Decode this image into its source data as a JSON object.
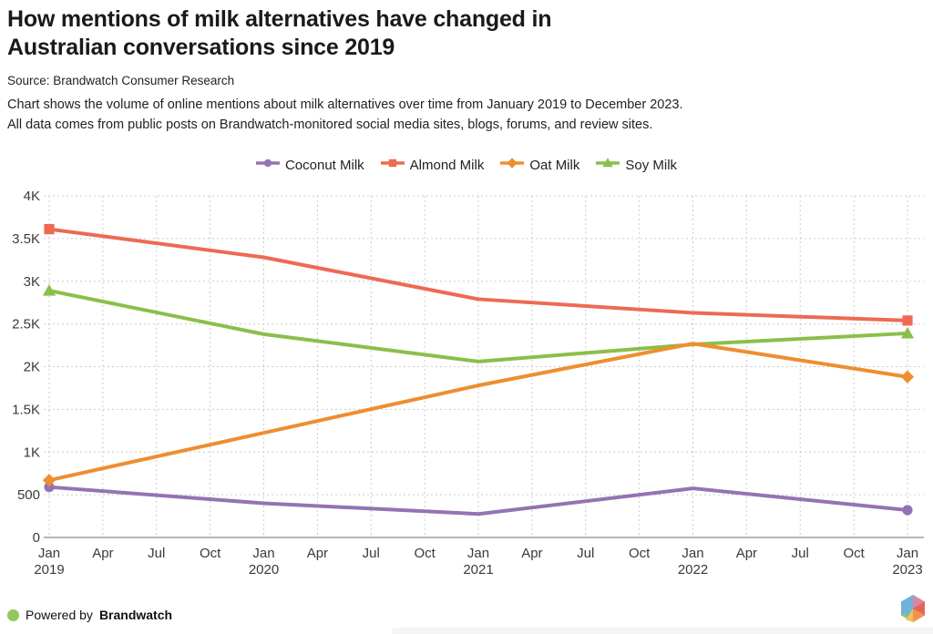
{
  "header": {
    "title": "How mentions of milk alternatives have changed in Australian conversations since 2019",
    "source": "Source: Brandwatch Consumer Research",
    "description_line1": "Chart shows the volume of online mentions about milk alternatives over time from January 2019 to December 2023.",
    "description_line2": "All data comes from public posts on Brandwatch-monitored social media sites, blogs, forums, and review sites."
  },
  "footer": {
    "powered_by": "Powered by",
    "brand": "Brandwatch",
    "dot_color": "#94c85b"
  },
  "chart_data": {
    "type": "line",
    "title": "How mentions of milk alternatives have changed in Australian conversations since 2019",
    "xlabel": "",
    "ylabel": "",
    "ylim": [
      0,
      4000
    ],
    "grid": "dotted horizontal and vertical",
    "legend_position": "top-center",
    "y_ticks": [
      {
        "value": 0,
        "label": "0"
      },
      {
        "value": 500,
        "label": "500"
      },
      {
        "value": 1000,
        "label": "1K"
      },
      {
        "value": 1500,
        "label": "1.5K"
      },
      {
        "value": 2000,
        "label": "2K"
      },
      {
        "value": 2500,
        "label": "2.5K"
      },
      {
        "value": 3000,
        "label": "3K"
      },
      {
        "value": 3500,
        "label": "3.5K"
      },
      {
        "value": 4000,
        "label": "4K"
      }
    ],
    "x_ticks": [
      {
        "month": "Jan",
        "year": "2019"
      },
      {
        "month": "Apr"
      },
      {
        "month": "Jul"
      },
      {
        "month": "Oct"
      },
      {
        "month": "Jan",
        "year": "2020"
      },
      {
        "month": "Apr"
      },
      {
        "month": "Jul"
      },
      {
        "month": "Oct"
      },
      {
        "month": "Jan",
        "year": "2021"
      },
      {
        "month": "Apr"
      },
      {
        "month": "Jul"
      },
      {
        "month": "Oct"
      },
      {
        "month": "Jan",
        "year": "2022"
      },
      {
        "month": "Apr"
      },
      {
        "month": "Jul"
      },
      {
        "month": "Oct"
      },
      {
        "month": "Jan",
        "year": "2023"
      }
    ],
    "x": [
      "Jan 2019",
      "Jan 2020",
      "Jan 2021",
      "Jan 2022",
      "Jan 2023"
    ],
    "series": [
      {
        "name": "Coconut Milk",
        "color": "#9473b3",
        "marker": "circle",
        "values": [
          590,
          400,
          275,
          575,
          320
        ]
      },
      {
        "name": "Almond Milk",
        "color": "#ed6a53",
        "marker": "square",
        "values": [
          3610,
          3280,
          2790,
          2630,
          2540
        ]
      },
      {
        "name": "Oat Milk",
        "color": "#ee8e30",
        "marker": "diamond",
        "values": [
          670,
          1225,
          1780,
          2270,
          1880
        ]
      },
      {
        "name": "Soy Milk",
        "color": "#8abf4a",
        "marker": "triangle",
        "values": [
          2890,
          2380,
          2060,
          2260,
          2390
        ]
      }
    ]
  }
}
